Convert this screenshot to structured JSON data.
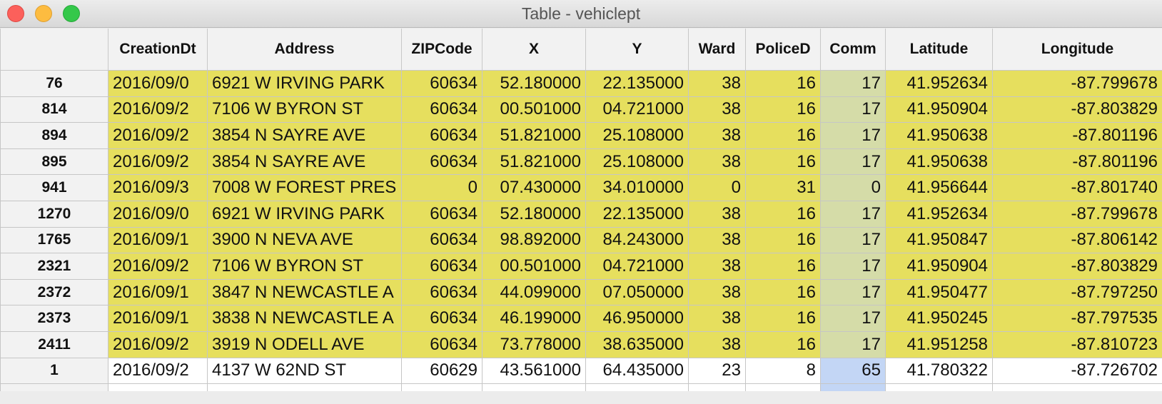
{
  "window": {
    "title": "Table - vehiclept"
  },
  "columns": [
    "",
    "CreationDt",
    "Address",
    "ZIPCode",
    "X",
    "Y",
    "Ward",
    "PoliceD",
    "Comm",
    "Latitude",
    "Longitude"
  ],
  "rows": [
    {
      "id": "76",
      "date": "2016/09/0",
      "address": "6921 W IRVING PARK",
      "zip": "60634",
      "x": "52.180000",
      "y": "22.135000",
      "ward": "38",
      "police": "16",
      "comm": "17",
      "lat": "41.952634",
      "lon": "-87.799678"
    },
    {
      "id": "814",
      "date": "2016/09/2",
      "address": "7106 W BYRON ST",
      "zip": "60634",
      "x": "00.501000",
      "y": "04.721000",
      "ward": "38",
      "police": "16",
      "comm": "17",
      "lat": "41.950904",
      "lon": "-87.803829"
    },
    {
      "id": "894",
      "date": "2016/09/2",
      "address": "3854 N SAYRE AVE",
      "zip": "60634",
      "x": "51.821000",
      "y": "25.108000",
      "ward": "38",
      "police": "16",
      "comm": "17",
      "lat": "41.950638",
      "lon": "-87.801196"
    },
    {
      "id": "895",
      "date": "2016/09/2",
      "address": "3854 N SAYRE AVE",
      "zip": "60634",
      "x": "51.821000",
      "y": "25.108000",
      "ward": "38",
      "police": "16",
      "comm": "17",
      "lat": "41.950638",
      "lon": "-87.801196"
    },
    {
      "id": "941",
      "date": "2016/09/3",
      "address": "7008 W FOREST PRES",
      "zip": "0",
      "x": "07.430000",
      "y": "34.010000",
      "ward": "0",
      "police": "31",
      "comm": "0",
      "lat": "41.956644",
      "lon": "-87.801740"
    },
    {
      "id": "1270",
      "date": "2016/09/0",
      "address": "6921 W IRVING PARK",
      "zip": "60634",
      "x": "52.180000",
      "y": "22.135000",
      "ward": "38",
      "police": "16",
      "comm": "17",
      "lat": "41.952634",
      "lon": "-87.799678"
    },
    {
      "id": "1765",
      "date": "2016/09/1",
      "address": "3900 N NEVA AVE",
      "zip": "60634",
      "x": "98.892000",
      "y": "84.243000",
      "ward": "38",
      "police": "16",
      "comm": "17",
      "lat": "41.950847",
      "lon": "-87.806142"
    },
    {
      "id": "2321",
      "date": "2016/09/2",
      "address": "7106 W BYRON ST",
      "zip": "60634",
      "x": "00.501000",
      "y": "04.721000",
      "ward": "38",
      "police": "16",
      "comm": "17",
      "lat": "41.950904",
      "lon": "-87.803829"
    },
    {
      "id": "2372",
      "date": "2016/09/1",
      "address": "3847 N NEWCASTLE A",
      "zip": "60634",
      "x": "44.099000",
      "y": "07.050000",
      "ward": "38",
      "police": "16",
      "comm": "17",
      "lat": "41.950477",
      "lon": "-87.797250"
    },
    {
      "id": "2373",
      "date": "2016/09/1",
      "address": "3838 N NEWCASTLE A",
      "zip": "60634",
      "x": "46.199000",
      "y": "46.950000",
      "ward": "38",
      "police": "16",
      "comm": "17",
      "lat": "41.950245",
      "lon": "-87.797535"
    },
    {
      "id": "2411",
      "date": "2016/09/2",
      "address": "3919 N ODELL AVE",
      "zip": "60634",
      "x": "73.778000",
      "y": "38.635000",
      "ward": "38",
      "police": "16",
      "comm": "17",
      "lat": "41.951258",
      "lon": "-87.810723"
    },
    {
      "id": "1",
      "date": "2016/09/2",
      "address": "4137 W 62ND ST",
      "zip": "60629",
      "x": "43.561000",
      "y": "64.435000",
      "ward": "23",
      "police": "8",
      "comm": "65",
      "lat": "41.780322",
      "lon": "-87.726702"
    }
  ],
  "highlighted_rows": 11,
  "colors": {
    "highlight": "#e6df5e",
    "comm_highlight": "#d5dca8",
    "selection": "#c3d6f5"
  }
}
